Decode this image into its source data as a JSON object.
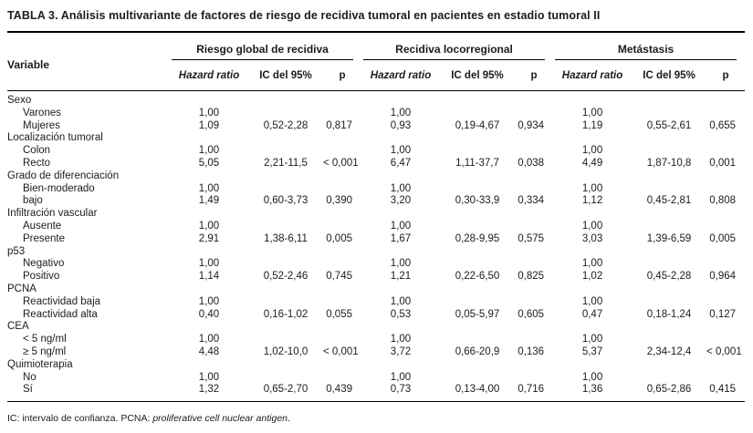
{
  "title": "TABLA 3. Análisis multivariante de factores de riesgo de recidiva tumoral en pacientes en estadio tumoral II",
  "table": {
    "variable_header": "Variable",
    "groups": [
      {
        "label": "Riesgo global de recidiva"
      },
      {
        "label": "Recidiva locorregional"
      },
      {
        "label": "Metástasis"
      }
    ],
    "subcols": {
      "hazard": "Hazard ratio",
      "ic": "IC del 95%",
      "p": "p"
    },
    "rows": [
      {
        "type": "category",
        "label": "Sexo",
        "cells": [
          "",
          "",
          "",
          "",
          "",
          "",
          "",
          "",
          ""
        ]
      },
      {
        "type": "item",
        "label": "Varones",
        "cells": [
          "1,00",
          "",
          "",
          "1,00",
          "",
          "",
          "1,00",
          "",
          ""
        ]
      },
      {
        "type": "item",
        "label": "Mujeres",
        "cells": [
          "1,09",
          "0,52-2,28",
          "0,817",
          "0,93",
          "0,19-4,67",
          "0,934",
          "1,19",
          "0,55-2,61",
          "0,655"
        ]
      },
      {
        "type": "category",
        "label": "Localización tumoral",
        "cells": [
          "",
          "",
          "",
          "",
          "",
          "",
          "",
          "",
          ""
        ]
      },
      {
        "type": "item",
        "label": "Colon",
        "cells": [
          "1,00",
          "",
          "",
          "1,00",
          "",
          "",
          "1,00",
          "",
          ""
        ]
      },
      {
        "type": "item",
        "label": "Recto",
        "cells": [
          "5,05",
          "2,21-11,5",
          "< 0,001",
          "6,47",
          "1,11-37,7",
          "0,038",
          "4,49",
          "1,87-10,8",
          "0,001"
        ]
      },
      {
        "type": "category",
        "label": "Grado de diferenciación",
        "cells": [
          "",
          "",
          "",
          "",
          "",
          "",
          "",
          "",
          ""
        ]
      },
      {
        "type": "item",
        "label": "Bien-moderado",
        "cells": [
          "1,00",
          "",
          "",
          "1,00",
          "",
          "",
          "1,00",
          "",
          ""
        ]
      },
      {
        "type": "item",
        "label": "bajo",
        "cells": [
          "1,49",
          "0,60-3,73",
          "0,390",
          "3,20",
          "0,30-33,9",
          "0,334",
          "1,12",
          "0,45-2,81",
          "0,808"
        ]
      },
      {
        "type": "category",
        "label": "Infiltración vascular",
        "cells": [
          "",
          "",
          "",
          "",
          "",
          "",
          "",
          "",
          ""
        ]
      },
      {
        "type": "item",
        "label": "Ausente",
        "cells": [
          "1,00",
          "",
          "",
          "1,00",
          "",
          "",
          "1,00",
          "",
          ""
        ]
      },
      {
        "type": "item",
        "label": "Presente",
        "cells": [
          "2,91",
          "1,38-6,11",
          "0,005",
          "1,67",
          "0,28-9,95",
          "0,575",
          "3,03",
          "1,39-6,59",
          "0,005"
        ]
      },
      {
        "type": "category",
        "label": "p53",
        "cells": [
          "",
          "",
          "",
          "",
          "",
          "",
          "",
          "",
          ""
        ]
      },
      {
        "type": "item",
        "label": "Negativo",
        "cells": [
          "1,00",
          "",
          "",
          "1,00",
          "",
          "",
          "1,00",
          "",
          ""
        ]
      },
      {
        "type": "item",
        "label": "Positivo",
        "cells": [
          "1,14",
          "0,52-2,46",
          "0,745",
          "1,21",
          "0,22-6,50",
          "0,825",
          "1,02",
          "0,45-2,28",
          "0,964"
        ]
      },
      {
        "type": "category",
        "label": "PCNA",
        "cells": [
          "",
          "",
          "",
          "",
          "",
          "",
          "",
          "",
          ""
        ]
      },
      {
        "type": "item",
        "label": "Reactividad baja",
        "cells": [
          "1,00",
          "",
          "",
          "1,00",
          "",
          "",
          "1,00",
          "",
          ""
        ]
      },
      {
        "type": "item",
        "label": "Reactividad alta",
        "cells": [
          "0,40",
          "0,16-1,02",
          "0,055",
          "0,53",
          "0,05-5,97",
          "0,605",
          "0,47",
          "0,18-1,24",
          "0,127"
        ]
      },
      {
        "type": "category",
        "label": "CEA",
        "cells": [
          "",
          "",
          "",
          "",
          "",
          "",
          "",
          "",
          ""
        ]
      },
      {
        "type": "item",
        "label": "< 5 ng/ml",
        "cells": [
          "1,00",
          "",
          "",
          "1,00",
          "",
          "",
          "1,00",
          "",
          ""
        ]
      },
      {
        "type": "item",
        "label": "≥ 5 ng/ml",
        "cells": [
          "4,48",
          "1,02-10,0",
          "< 0,001",
          "3,72",
          "0,66-20,9",
          "0,136",
          "5,37",
          "2,34-12,4",
          "< 0,001"
        ]
      },
      {
        "type": "category",
        "label": "Quimioterapia",
        "cells": [
          "",
          "",
          "",
          "",
          "",
          "",
          "",
          "",
          ""
        ]
      },
      {
        "type": "item",
        "label": "No",
        "cells": [
          "1,00",
          "",
          "",
          "1,00",
          "",
          "",
          "1,00",
          "",
          ""
        ]
      },
      {
        "type": "item",
        "label": "Sí",
        "cells": [
          "1,32",
          "0,65-2,70",
          "0,439",
          "0,73",
          "0,13-4,00",
          "0,716",
          "1,36",
          "0,65-2,86",
          "0,415"
        ]
      }
    ]
  },
  "footnote": {
    "prefix": "IC: intervalo de confianza. PCNA: ",
    "italic": "proliferative cell nuclear antigen",
    "suffix": "."
  }
}
